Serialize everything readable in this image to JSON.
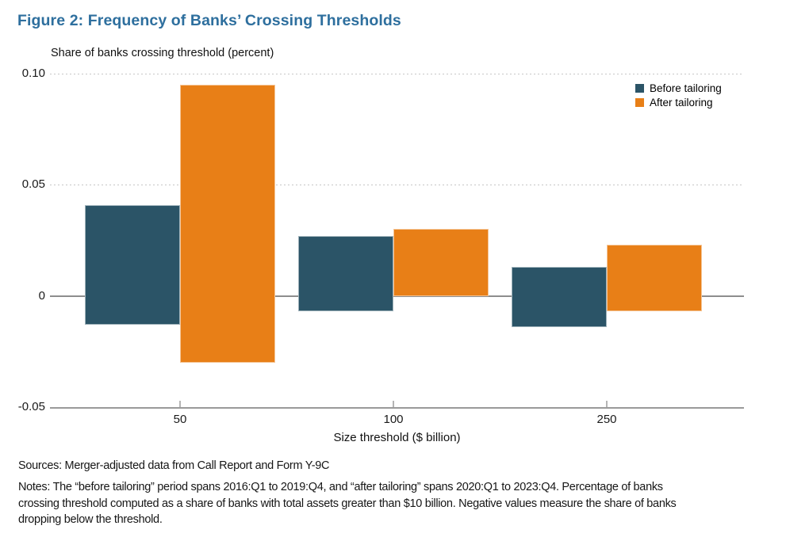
{
  "chart_data": {
    "type": "bar",
    "title": "Figure 2: Frequency of Banks’ Crossing Thresholds",
    "axis_title": "Share of banks crossing threshold (percent)",
    "xlabel": "Size threshold ($ billion)",
    "categories": [
      "50",
      "100",
      "250"
    ],
    "series": [
      {
        "name": "Before tailoring",
        "color": "#2b5467",
        "positive": [
          0.041,
          0.027,
          0.013
        ],
        "negative": [
          -0.013,
          -0.007,
          -0.014
        ]
      },
      {
        "name": "After tailoring",
        "color": "#e87f17",
        "positive": [
          0.095,
          0.03,
          0.023
        ],
        "negative": [
          -0.03,
          0.0,
          -0.007
        ]
      }
    ],
    "ylim": [
      -0.05,
      0.1
    ],
    "yticks": [
      0.1,
      0.05,
      0,
      -0.05
    ],
    "ytick_labels": [
      "0.10",
      "0.05",
      "0",
      "-0.05"
    ],
    "grid": "horizontal dotted lines at 0.05 and 0.10, solid gray line at 0, solid axis line at -0.05",
    "legend_position": "top-right",
    "value_note": "positive = share crossing above threshold, negative = share dropping below threshold"
  },
  "footnotes": {
    "sources": "Sources: Merger-adjusted data from Call Report and Form Y-9C",
    "notes": "Notes: The “before tailoring” period spans 2016:Q1 to 2019:Q4, and “after tailoring” spans 2020:Q1 to 2023:Q4. Percentage of banks crossing threshold computed as a share of banks with total assets greater than $10 billion. Negative values measure the share of banks dropping below the threshold."
  }
}
